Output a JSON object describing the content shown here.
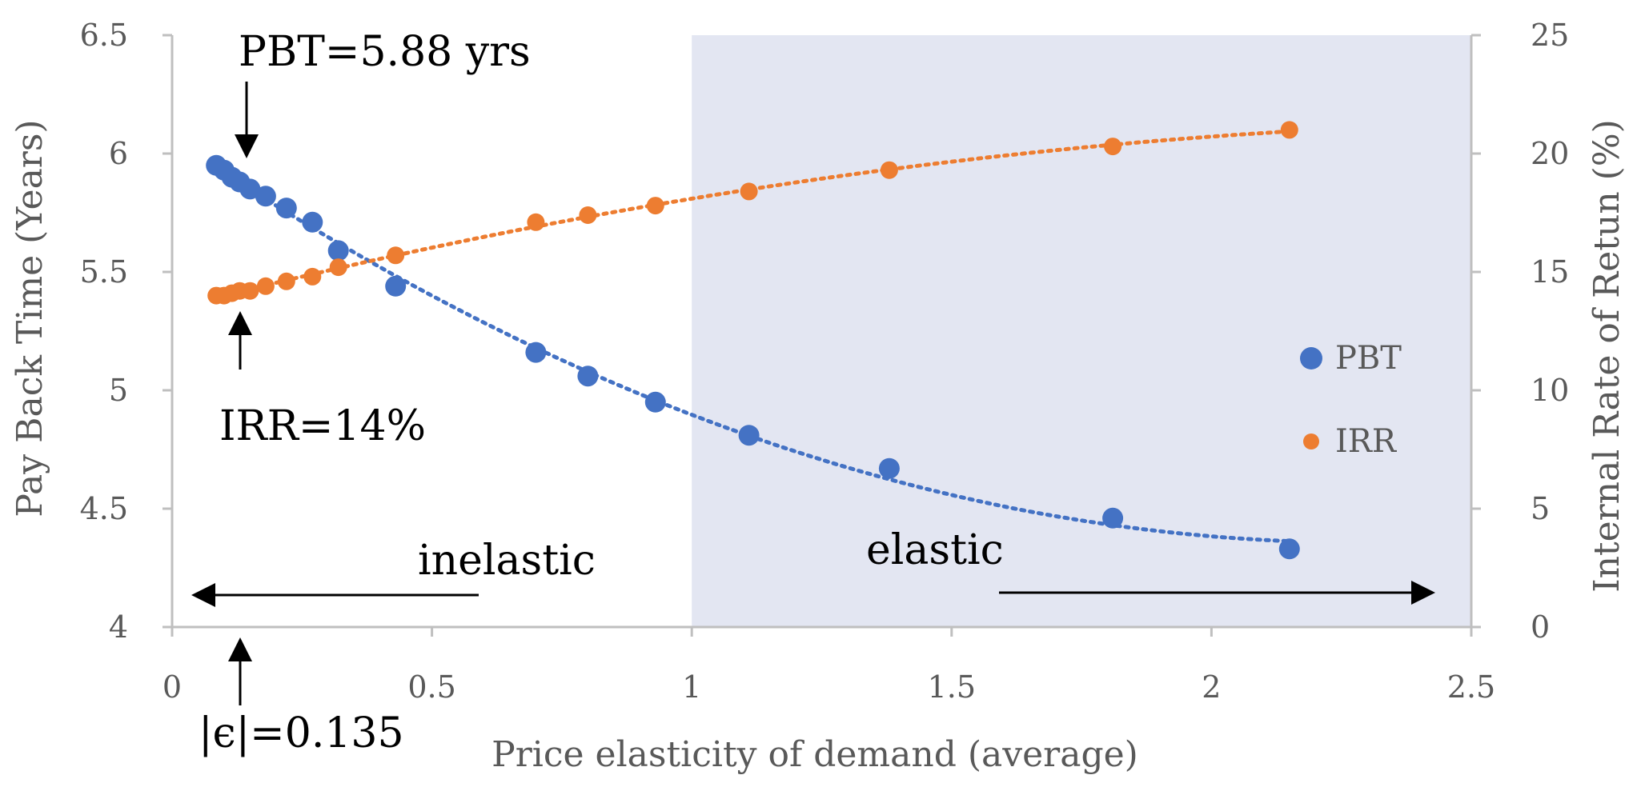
{
  "chart_data": {
    "type": "scatter",
    "title": "",
    "xlabel": "Price elasticity of demand (average)",
    "ylabel_left": "Pay Back Time (Years)",
    "ylabel_right": "Internal Rate of Retun (%)",
    "xlim": [
      0,
      2.5
    ],
    "ylim_left": [
      4,
      6.5
    ],
    "ylim_right": [
      0,
      25
    ],
    "x_ticks": [
      "0",
      "0.5",
      "1",
      "1.5",
      "2",
      "2.5"
    ],
    "y_left_ticks": [
      "4",
      "4.5",
      "5",
      "5.5",
      "6",
      "6.5"
    ],
    "y_right_ticks": [
      "0",
      "5",
      "10",
      "15",
      "20",
      "25"
    ],
    "shaded_region": {
      "x_from": 1.0,
      "x_to": 2.5,
      "color": "#e3e6f2"
    },
    "series": [
      {
        "name": "PBT",
        "axis": "left",
        "color": "#4472c4",
        "trendline": "dotted",
        "x": [
          0.085,
          0.1,
          0.115,
          0.13,
          0.15,
          0.18,
          0.22,
          0.27,
          0.32,
          0.43,
          0.7,
          0.8,
          0.93,
          1.11,
          1.38,
          1.81,
          2.15
        ],
        "y": [
          5.95,
          5.93,
          5.9,
          5.88,
          5.85,
          5.82,
          5.77,
          5.71,
          5.59,
          5.44,
          5.16,
          5.06,
          4.95,
          4.81,
          4.67,
          4.46,
          4.33
        ]
      },
      {
        "name": "IRR",
        "axis": "right",
        "color": "#ed7d31",
        "trendline": "dotted",
        "x": [
          0.085,
          0.1,
          0.115,
          0.13,
          0.15,
          0.18,
          0.22,
          0.27,
          0.32,
          0.43,
          0.7,
          0.8,
          0.93,
          1.11,
          1.38,
          1.81,
          2.15
        ],
        "y": [
          14.0,
          14.0,
          14.1,
          14.2,
          14.2,
          14.4,
          14.6,
          14.8,
          15.2,
          15.7,
          17.1,
          17.4,
          17.8,
          18.4,
          19.3,
          20.3,
          21.0
        ]
      }
    ],
    "legend": [
      {
        "label": "PBT",
        "color": "#4472c4"
      },
      {
        "label": "IRR",
        "color": "#ed7d31"
      }
    ],
    "annotations": {
      "pbt_label": "PBT=5.88 yrs",
      "irr_label": "IRR=14%",
      "eps_label": "|ϵ|=0.135",
      "inelastic_label": "inelastic",
      "elastic_label": "elastic"
    }
  }
}
